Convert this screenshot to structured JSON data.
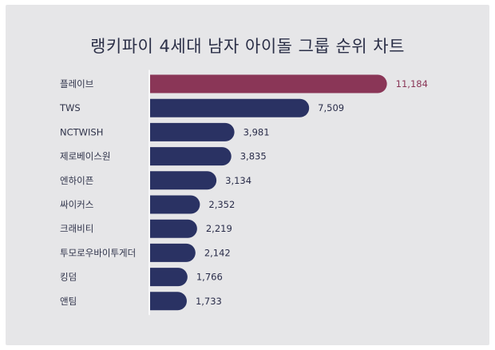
{
  "chart_data": {
    "type": "bar",
    "orientation": "horizontal",
    "title": "랭키파이 4세대 남자 아이돌 그룹 순위 차트",
    "categories": [
      "플레이브",
      "TWS",
      "NCTWISH",
      "제로베이스원",
      "엔하이픈",
      "싸이커스",
      "크래비티",
      "투모로우바이투게더",
      "킹덤",
      "앤팀"
    ],
    "values": [
      11184,
      7509,
      3981,
      3835,
      3134,
      2352,
      2219,
      2142,
      1766,
      1733
    ],
    "value_labels": [
      "11,184",
      "7,509",
      "3,981",
      "3,835",
      "3,134",
      "2,352",
      "2,219",
      "2,142",
      "1,766",
      "1,733"
    ],
    "xlim": [
      0,
      11800
    ],
    "grid": false,
    "legend": "none",
    "colors": {
      "highlight": "#8a3657",
      "default": "#2a3263",
      "highlight_label": "#8a3657",
      "default_label": "#2a2d4a",
      "axis_line": "#ffffff",
      "background": "#e6e6e8"
    },
    "highlight_index": 0
  }
}
